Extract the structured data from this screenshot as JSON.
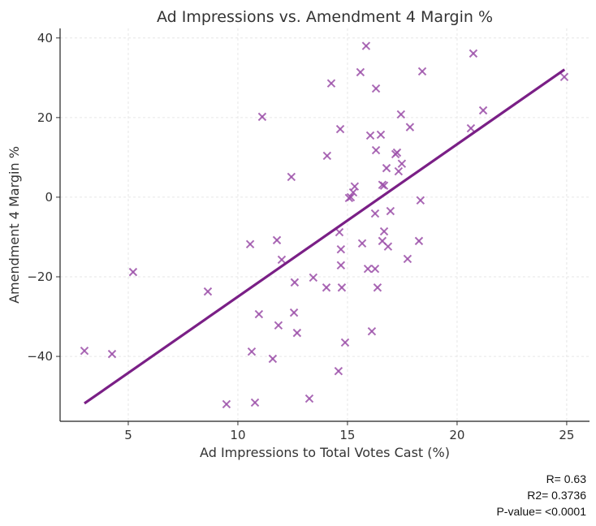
{
  "chart_data": {
    "type": "scatter",
    "title": "Ad Impressions vs. Amendment 4 Margin %",
    "xlabel": "Ad Impressions to Total Votes Cast (%)",
    "ylabel": "Amendment 4 Margin %",
    "xlim": [
      1.89,
      26.04
    ],
    "ylim": [
      -56.3,
      42.4
    ],
    "xticks": [
      5,
      10,
      15,
      20,
      25
    ],
    "yticks": [
      -40,
      -20,
      0,
      20,
      40
    ],
    "xtick_labels": [
      "5",
      "10",
      "15",
      "20",
      "25"
    ],
    "ytick_labels": [
      "−40",
      "−20",
      "0",
      "20",
      "40"
    ],
    "grid": true,
    "marker": "x",
    "point_color": "#9b4fa8",
    "line_color": "#7a1f86",
    "trendline": {
      "slope": 3.83,
      "intercept": -63.3,
      "x_range": [
        3.0,
        24.9
      ]
    },
    "points": [
      [
        3.0,
        -38.6
      ],
      [
        4.26,
        -39.4
      ],
      [
        5.22,
        -18.8
      ],
      [
        8.63,
        -23.7
      ],
      [
        9.48,
        -52.0
      ],
      [
        10.56,
        -11.8
      ],
      [
        10.78,
        -51.6
      ],
      [
        10.63,
        -38.8
      ],
      [
        10.96,
        -29.4
      ],
      [
        11.11,
        20.2
      ],
      [
        11.59,
        -40.6
      ],
      [
        11.78,
        -10.8
      ],
      [
        11.85,
        -32.2
      ],
      [
        12.0,
        -15.7
      ],
      [
        12.44,
        5.1
      ],
      [
        12.59,
        -21.4
      ],
      [
        12.56,
        -29.0
      ],
      [
        12.7,
        -34.1
      ],
      [
        13.26,
        -50.6
      ],
      [
        13.44,
        -20.2
      ],
      [
        14.04,
        -22.7
      ],
      [
        14.07,
        10.4
      ],
      [
        14.26,
        28.6
      ],
      [
        14.59,
        -43.7
      ],
      [
        14.63,
        -8.8
      ],
      [
        14.67,
        17.1
      ],
      [
        14.7,
        -17.1
      ],
      [
        14.74,
        -22.7
      ],
      [
        14.7,
        -13.1
      ],
      [
        14.89,
        -36.5
      ],
      [
        15.07,
        -0.2
      ],
      [
        15.15,
        0.0
      ],
      [
        15.26,
        1.2
      ],
      [
        15.33,
        2.7
      ],
      [
        15.59,
        31.4
      ],
      [
        15.67,
        -11.6
      ],
      [
        15.85,
        38.0
      ],
      [
        15.93,
        -18.0
      ],
      [
        16.04,
        15.5
      ],
      [
        16.11,
        -33.7
      ],
      [
        16.26,
        -18.0
      ],
      [
        16.26,
        -4.1
      ],
      [
        16.3,
        11.8
      ],
      [
        16.3,
        27.3
      ],
      [
        16.37,
        -22.7
      ],
      [
        16.52,
        15.7
      ],
      [
        16.59,
        3.1
      ],
      [
        16.59,
        -11.0
      ],
      [
        16.67,
        2.9
      ],
      [
        16.67,
        -8.6
      ],
      [
        16.78,
        7.3
      ],
      [
        16.85,
        -12.4
      ],
      [
        16.96,
        -3.5
      ],
      [
        17.19,
        10.8
      ],
      [
        17.26,
        11.2
      ],
      [
        17.33,
        6.5
      ],
      [
        17.44,
        20.8
      ],
      [
        17.48,
        8.4
      ],
      [
        17.74,
        -15.5
      ],
      [
        17.85,
        17.6
      ],
      [
        18.26,
        -11.0
      ],
      [
        18.33,
        -0.8
      ],
      [
        18.41,
        31.6
      ],
      [
        20.63,
        17.3
      ],
      [
        20.74,
        36.1
      ],
      [
        21.19,
        21.8
      ],
      [
        24.89,
        30.2
      ]
    ]
  },
  "stats": {
    "r": "R= 0.63",
    "r2": "R2= 0.3736",
    "p": "P-value= <0.0001"
  }
}
